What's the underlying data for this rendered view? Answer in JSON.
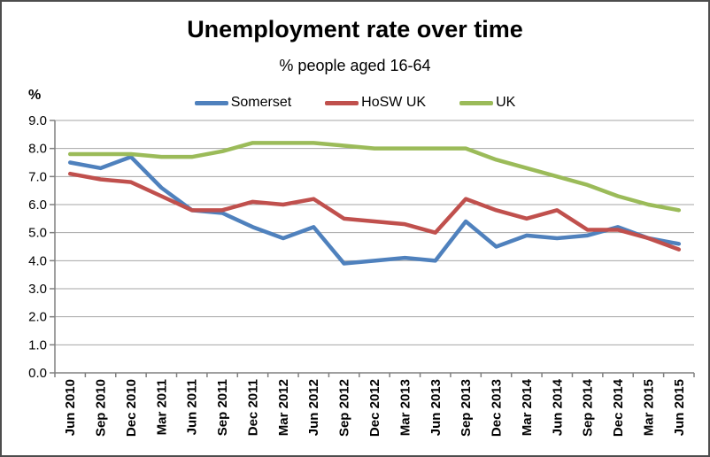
{
  "chart_data": {
    "type": "line",
    "title": "Unemployment rate over time",
    "subtitle": "% people aged 16-64",
    "xlabel": "",
    "ylabel": "%",
    "ylim": [
      0,
      9
    ],
    "ytick_step": 1,
    "ytick_decimals": 1,
    "grid": true,
    "legend_position": "top-center",
    "grid_color": "#a6a6a6",
    "axis_color": "#808080",
    "border_color": "#4d4d4d",
    "categories": [
      "Jun 2010",
      "Sep 2010",
      "Dec 2010",
      "Mar 2011",
      "Jun 2011",
      "Sep 2011",
      "Dec 2011",
      "Mar 2012",
      "Jun 2012",
      "Sep 2012",
      "Dec 2012",
      "Mar 2013",
      "Jun 2013",
      "Sep 2013",
      "Dec 2013",
      "Mar 2014",
      "Jun 2014",
      "Sep 2014",
      "Dec 2014",
      "Mar 2015",
      "Jun 2015"
    ],
    "series": [
      {
        "name": "Somerset",
        "color": "#4f81bd",
        "values": [
          7.5,
          7.3,
          7.7,
          6.6,
          5.8,
          5.7,
          5.2,
          4.8,
          5.2,
          3.9,
          4.0,
          4.1,
          4.0,
          5.4,
          4.5,
          4.9,
          4.8,
          4.9,
          5.2,
          4.8,
          4.6
        ]
      },
      {
        "name": "HoSW UK",
        "color": "#c0504d",
        "values": [
          7.1,
          6.9,
          6.8,
          6.3,
          5.8,
          5.8,
          6.1,
          6.0,
          6.2,
          5.5,
          5.4,
          5.3,
          5.0,
          6.2,
          5.8,
          5.5,
          5.8,
          5.1,
          5.1,
          4.8,
          4.4
        ]
      },
      {
        "name": "UK",
        "color": "#9bbb59",
        "values": [
          7.8,
          7.8,
          7.8,
          7.7,
          7.7,
          7.9,
          8.2,
          8.2,
          8.2,
          8.1,
          8.0,
          8.0,
          8.0,
          8.0,
          7.6,
          7.3,
          7.0,
          6.7,
          6.3,
          6.0,
          5.8
        ]
      }
    ]
  }
}
